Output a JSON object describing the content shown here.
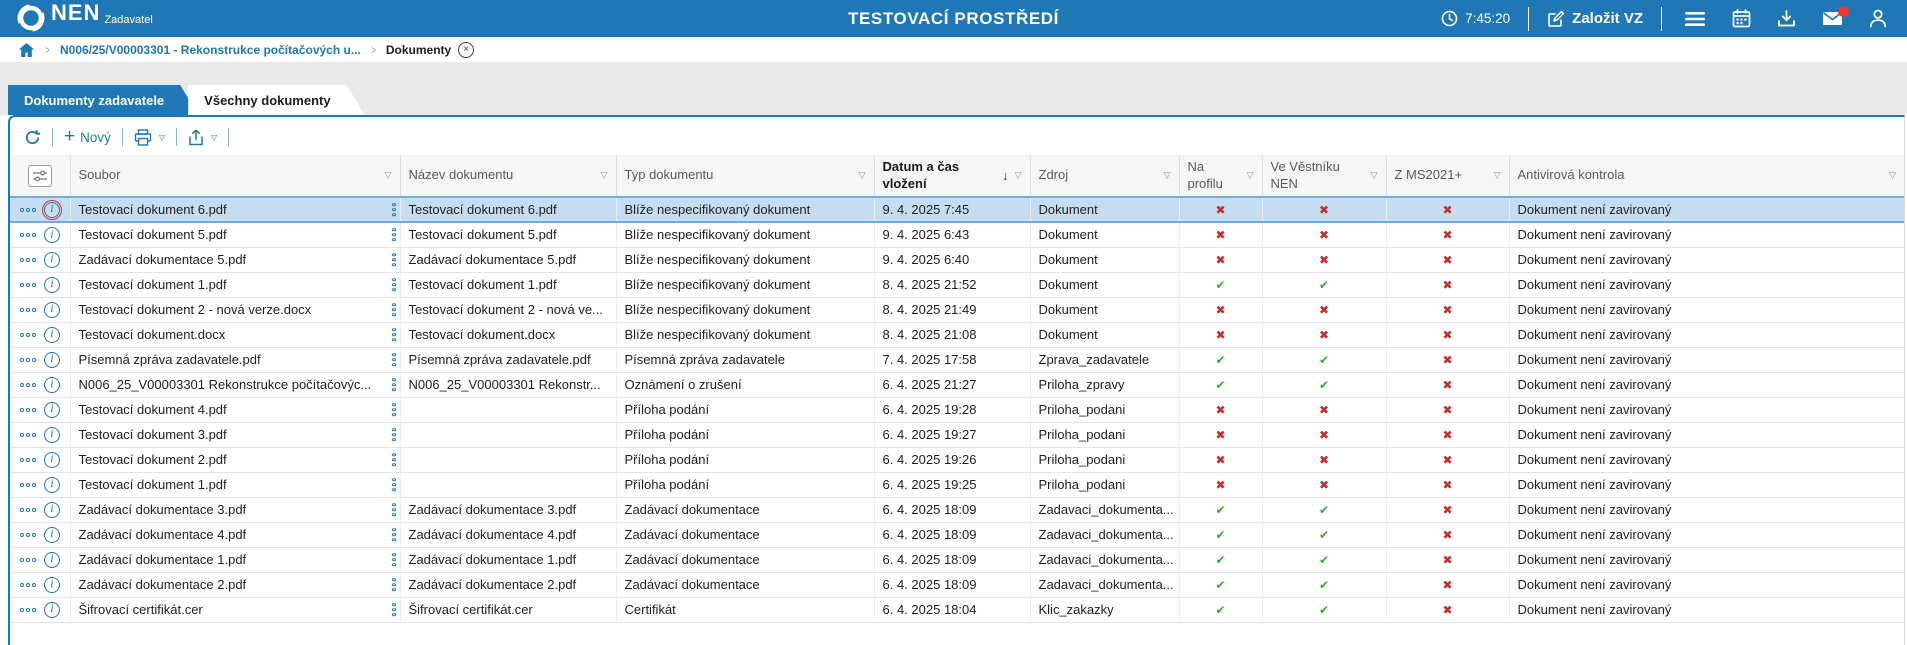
{
  "topbar": {
    "logo_text": "NEN",
    "logo_sub": "Zadavatel",
    "title": "TESTOVACÍ PROSTŘEDÍ",
    "time": "7:45:20",
    "new_vz_label": "Založit VZ"
  },
  "breadcrumb": {
    "items": [
      "N006/25/V00003301 - Rekonstrukce počítačových u...",
      "Dokumenty"
    ]
  },
  "tabs": [
    {
      "label": "Dokumenty zadavatele",
      "active": true
    },
    {
      "label": "Všechny dokumenty",
      "active": false
    }
  ],
  "toolbar": {
    "new_label": "Nový"
  },
  "icons": {
    "filter": "▽",
    "sort_desc": "↓",
    "check": "✔",
    "cross": "✖",
    "close": "×",
    "breadcrumb_separator": "❯"
  },
  "colors": {
    "brand_blue": "#2077B5",
    "selected_row_bg": "#C5DDF3",
    "selected_row_border": "#74A9DB",
    "check_green": "#3BA935",
    "cross_red": "#C62E2E",
    "badge_red": "#E53935"
  },
  "table": {
    "columns": [
      {
        "key": "file",
        "label": "Soubor"
      },
      {
        "key": "name",
        "label": "Název dokumentu"
      },
      {
        "key": "type",
        "label": "Typ dokumentu"
      },
      {
        "key": "date",
        "label": "Datum a čas vložení",
        "sorted": "desc"
      },
      {
        "key": "source",
        "label": "Zdroj"
      },
      {
        "key": "profile",
        "label": "Na profilu",
        "boolean": true
      },
      {
        "key": "bulletin",
        "label": "Ve Věstníku NEN",
        "boolean": true
      },
      {
        "key": "ms",
        "label": "Z MS2021+",
        "boolean": true
      },
      {
        "key": "av",
        "label": "Antivirová kontrola"
      }
    ],
    "rows": [
      {
        "file": "Testovací dokument 6.pdf",
        "name": "Testovací dokument 6.pdf",
        "type": "Blíže nespecifikovaný dokument",
        "date": "9. 4. 2025 7:45",
        "source": "Dokument",
        "profile": false,
        "bulletin": false,
        "ms": false,
        "av": "Dokument není zavirovaný",
        "selected": true
      },
      {
        "file": "Testovací dokument 5.pdf",
        "name": "Testovací dokument 5.pdf",
        "type": "Blíže nespecifikovaný dokument",
        "date": "9. 4. 2025 6:43",
        "source": "Dokument",
        "profile": false,
        "bulletin": false,
        "ms": false,
        "av": "Dokument není zavirovaný"
      },
      {
        "file": "Zadávací dokumentace 5.pdf",
        "name": "Zadávací dokumentace 5.pdf",
        "type": "Blíže nespecifikovaný dokument",
        "date": "9. 4. 2025 6:40",
        "source": "Dokument",
        "profile": false,
        "bulletin": false,
        "ms": false,
        "av": "Dokument není zavirovaný"
      },
      {
        "file": "Testovací dokument 1.pdf",
        "name": "Testovací dokument 1.pdf",
        "type": "Blíže nespecifikovaný dokument",
        "date": "8. 4. 2025 21:52",
        "source": "Dokument",
        "profile": true,
        "bulletin": true,
        "ms": false,
        "av": "Dokument není zavirovaný"
      },
      {
        "file": "Testovací dokument 2 - nová verze.docx",
        "name": "Testovací dokument 2 - nová ve...",
        "type": "Blíže nespecifikovaný dokument",
        "date": "8. 4. 2025 21:49",
        "source": "Dokument",
        "profile": false,
        "bulletin": false,
        "ms": false,
        "av": "Dokument není zavirovaný"
      },
      {
        "file": "Testovací dokument.docx",
        "name": "Testovací dokument.docx",
        "type": "Blíže nespecifikovaný dokument",
        "date": "8. 4. 2025 21:08",
        "source": "Dokument",
        "profile": false,
        "bulletin": false,
        "ms": false,
        "av": "Dokument není zavirovaný"
      },
      {
        "file": "Písemná zpráva zadavatele.pdf",
        "name": "Písemná zpráva zadavatele.pdf",
        "type": "Písemná zpráva zadavatele",
        "date": "7. 4. 2025 17:58",
        "source": "Zprava_zadavatele",
        "profile": true,
        "bulletin": true,
        "ms": false,
        "av": "Dokument není zavirovaný"
      },
      {
        "file": "N006_25_V00003301 Rekonstrukce počítačovýc...",
        "name": "N006_25_V00003301 Rekonstr...",
        "type": "Oznámení o zrušení",
        "date": "6. 4. 2025 21:27",
        "source": "Priloha_zpravy",
        "profile": true,
        "bulletin": true,
        "ms": false,
        "av": "Dokument není zavirovaný"
      },
      {
        "file": "Testovací dokument 4.pdf",
        "name": "",
        "type": "Příloha podání",
        "date": "6. 4. 2025 19:28",
        "source": "Priloha_podani",
        "profile": false,
        "bulletin": false,
        "ms": false,
        "av": "Dokument není zavirovaný"
      },
      {
        "file": "Testovací dokument 3.pdf",
        "name": "",
        "type": "Příloha podání",
        "date": "6. 4. 2025 19:27",
        "source": "Priloha_podani",
        "profile": false,
        "bulletin": false,
        "ms": false,
        "av": "Dokument není zavirovaný"
      },
      {
        "file": "Testovací dokument 2.pdf",
        "name": "",
        "type": "Příloha podání",
        "date": "6. 4. 2025 19:26",
        "source": "Priloha_podani",
        "profile": false,
        "bulletin": false,
        "ms": false,
        "av": "Dokument není zavirovaný"
      },
      {
        "file": "Testovací dokument 1.pdf",
        "name": "",
        "type": "Příloha podání",
        "date": "6. 4. 2025 19:25",
        "source": "Priloha_podani",
        "profile": false,
        "bulletin": false,
        "ms": false,
        "av": "Dokument není zavirovaný"
      },
      {
        "file": "Zadávací dokumentace 3.pdf",
        "name": "Zadávací dokumentace 3.pdf",
        "type": "Zadávací dokumentace",
        "date": "6. 4. 2025 18:09",
        "source": "Zadavaci_dokumenta...",
        "profile": true,
        "bulletin": true,
        "ms": false,
        "av": "Dokument není zavirovaný"
      },
      {
        "file": "Zadávací dokumentace 4.pdf",
        "name": "Zadávací dokumentace 4.pdf",
        "type": "Zadávací dokumentace",
        "date": "6. 4. 2025 18:09",
        "source": "Zadavaci_dokumenta...",
        "profile": true,
        "bulletin": true,
        "ms": false,
        "av": "Dokument není zavirovaný"
      },
      {
        "file": "Zadávací dokumentace 1.pdf",
        "name": "Zadávací dokumentace 1.pdf",
        "type": "Zadávací dokumentace",
        "date": "6. 4. 2025 18:09",
        "source": "Zadavaci_dokumenta...",
        "profile": true,
        "bulletin": true,
        "ms": false,
        "av": "Dokument není zavirovaný"
      },
      {
        "file": "Zadávací dokumentace 2.pdf",
        "name": "Zadávací dokumentace 2.pdf",
        "type": "Zadávací dokumentace",
        "date": "6. 4. 2025 18:09",
        "source": "Zadavaci_dokumenta...",
        "profile": true,
        "bulletin": true,
        "ms": false,
        "av": "Dokument není zavirovaný"
      },
      {
        "file": "Šifrovací certifikát.cer",
        "name": "Šifrovací certifikát.cer",
        "type": "Certifikát",
        "date": "6. 4. 2025 18:04",
        "source": "Klic_zakazky",
        "profile": true,
        "bulletin": true,
        "ms": false,
        "av": "Dokument není zavirovaný"
      }
    ]
  }
}
